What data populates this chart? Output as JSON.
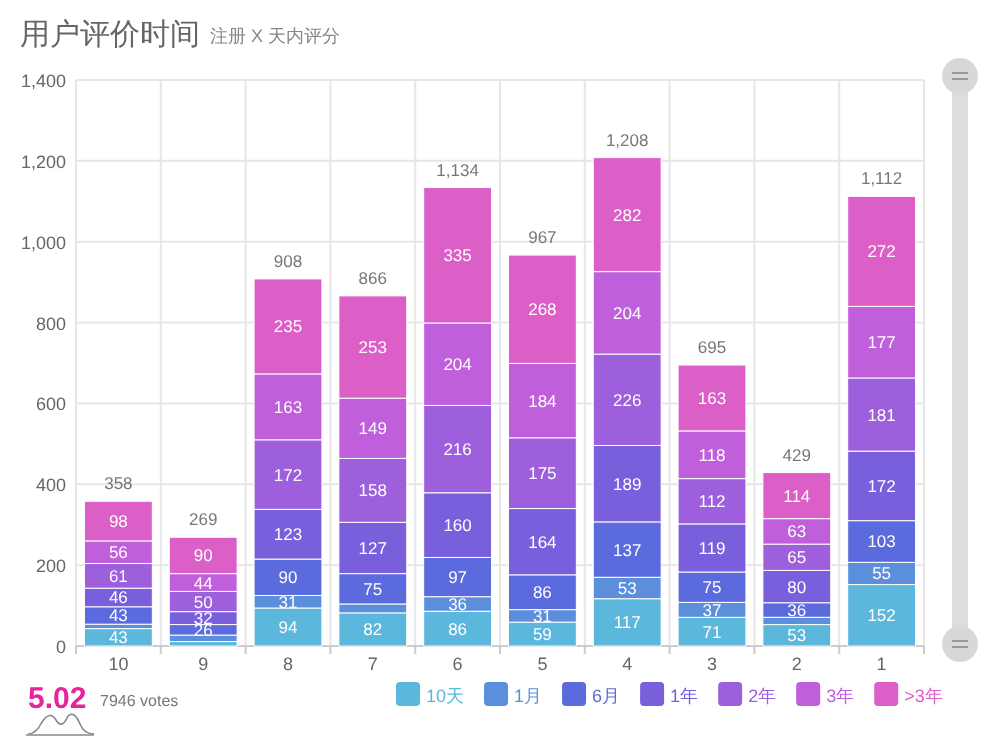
{
  "chart_data": {
    "type": "bar",
    "title": "用户评价时间",
    "subtitle": "注册 X 天内评分",
    "categories": [
      "10",
      "9",
      "8",
      "7",
      "6",
      "5",
      "4",
      "3",
      "2",
      "1"
    ],
    "stacked": true,
    "grid": true,
    "legend": "bottom",
    "ylim": [
      0,
      1400
    ],
    "yticks": [
      0,
      200,
      400,
      600,
      800,
      {
        "value": 1000,
        "label": "1,000"
      },
      {
        "value": 1200,
        "label": "1,200"
      },
      {
        "value": 1400,
        "label": "1,400"
      }
    ],
    "series": [
      {
        "name": "10天",
        "color": "#5bb8dc",
        "values": [
          43,
          11,
          94,
          82,
          86,
          59,
          117,
          71,
          53,
          152
        ],
        "value_labels": [
          "43",
          null,
          "94",
          "82",
          "86",
          "59",
          "117",
          "71",
          "53",
          "152"
        ]
      },
      {
        "name": "1月",
        "color": "#5b8fdc",
        "values": [
          11,
          16,
          31,
          22,
          36,
          31,
          53,
          37,
          18,
          55
        ],
        "value_labels": [
          null,
          null,
          "31",
          null,
          "36",
          "31",
          "53",
          "37",
          null,
          "55"
        ]
      },
      {
        "name": "6月",
        "color": "#5b6adc",
        "values": [
          43,
          26,
          90,
          75,
          97,
          86,
          137,
          75,
          36,
          103
        ],
        "value_labels": [
          "43",
          "26",
          "90",
          "75",
          "97",
          "86",
          "137",
          "75",
          "36",
          "103"
        ]
      },
      {
        "name": "1年",
        "color": "#7a5fdc",
        "values": [
          46,
          32,
          123,
          127,
          160,
          164,
          189,
          119,
          80,
          172
        ],
        "value_labels": [
          "46",
          "32",
          "123",
          "127",
          "160",
          "164",
          "189",
          "119",
          "80",
          "172"
        ]
      },
      {
        "name": "2年",
        "color": "#9d5fdc",
        "values": [
          61,
          50,
          172,
          158,
          216,
          175,
          226,
          112,
          65,
          181
        ],
        "value_labels": [
          "61",
          "50",
          "172",
          "158",
          "216",
          "175",
          "226",
          "112",
          "65",
          "181"
        ]
      },
      {
        "name": "3年",
        "color": "#c05fdc",
        "values": [
          56,
          44,
          163,
          149,
          204,
          184,
          204,
          118,
          63,
          177
        ],
        "value_labels": [
          "56",
          "44",
          "163",
          "149",
          "204",
          "184",
          "204",
          "118",
          "63",
          "177"
        ]
      },
      {
        "name": ">3年",
        "color": "#dc5fc8",
        "values": [
          98,
          90,
          235,
          253,
          335,
          268,
          282,
          163,
          114,
          272
        ],
        "value_labels": [
          "98",
          "90",
          "235",
          "253",
          "335",
          "268",
          "282",
          "163",
          "114",
          "272"
        ]
      }
    ],
    "totals": [
      "358",
      "269",
      "908",
      "866",
      "1,134",
      "967",
      "1,208",
      "695",
      "429",
      "1,112"
    ],
    "annotations": [
      "5.02",
      "7946 votes"
    ]
  }
}
